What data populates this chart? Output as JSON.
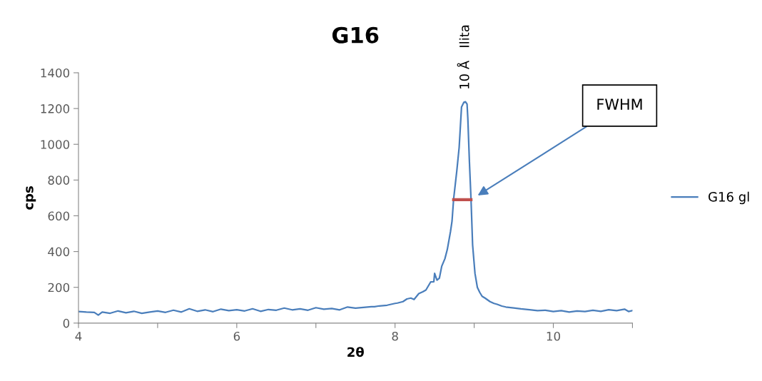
{
  "chart_data": {
    "type": "line",
    "title": "G16",
    "xlabel": "2θ",
    "ylabel": "cps",
    "xlim": [
      4,
      11
    ],
    "xticks": [
      4,
      {
        "value": 5,
        "label": null
      },
      6,
      {
        "value": 7,
        "label": null
      },
      8,
      {
        "value": 9,
        "label": null
      },
      10,
      {
        "value": 11,
        "label": null
      }
    ],
    "ylim": [
      0,
      1400
    ],
    "yticks": [
      0,
      200,
      400,
      600,
      800,
      1000,
      1200,
      1400
    ],
    "grid": false,
    "legend": "right",
    "series": [
      {
        "name": "G16 gl",
        "color": "#4a7ebb",
        "x": [
          4.0,
          4.1,
          4.2,
          4.25,
          4.3,
          4.4,
          4.5,
          4.6,
          4.7,
          4.8,
          4.9,
          5.0,
          5.1,
          5.2,
          5.3,
          5.4,
          5.5,
          5.6,
          5.7,
          5.8,
          5.9,
          6.0,
          6.1,
          6.2,
          6.3,
          6.4,
          6.5,
          6.6,
          6.7,
          6.8,
          6.9,
          7.0,
          7.1,
          7.2,
          7.3,
          7.4,
          7.5,
          7.6,
          7.7,
          7.74,
          7.8,
          7.9,
          8.0,
          8.03,
          8.1,
          8.15,
          8.2,
          8.24,
          8.3,
          8.35,
          8.39,
          8.45,
          8.49,
          8.5,
          8.53,
          8.56,
          8.59,
          8.63,
          8.66,
          8.7,
          8.72,
          8.74,
          8.78,
          8.81,
          8.84,
          8.87,
          8.89,
          8.91,
          8.92,
          8.94,
          8.96,
          8.98,
          9.01,
          9.04,
          9.07,
          9.1,
          9.14,
          9.2,
          9.25,
          9.29,
          9.35,
          9.4,
          9.5,
          9.59,
          9.7,
          9.8,
          9.9,
          10.0,
          10.1,
          10.2,
          10.3,
          10.4,
          10.5,
          10.6,
          10.7,
          10.8,
          10.9,
          10.95,
          11.0
        ],
        "values": [
          65,
          62,
          60,
          45,
          62,
          55,
          68,
          58,
          66,
          55,
          62,
          68,
          60,
          72,
          62,
          80,
          66,
          74,
          64,
          78,
          70,
          75,
          68,
          80,
          66,
          76,
          72,
          84,
          74,
          80,
          72,
          86,
          78,
          82,
          74,
          90,
          84,
          88,
          92,
          92,
          96,
          100,
          110,
          112,
          120,
          135,
          140,
          132,
          165,
          175,
          185,
          230,
          231,
          278,
          240,
          251,
          318,
          360,
          411,
          510,
          570,
          693,
          850,
          982,
          1208,
          1235,
          1238,
          1225,
          1142,
          900,
          693,
          438,
          278,
          200,
          172,
          150,
          139,
          120,
          110,
          105,
          95,
          90,
          85,
          80,
          75,
          70,
          72,
          65,
          70,
          62,
          68,
          65,
          72,
          66,
          75,
          70,
          78,
          65,
          70
        ]
      },
      {
        "type": "line",
        "color": "#c0504d",
        "x": [
          8.74,
          8.96
        ],
        "values": [
          690,
          690
        ]
      }
    ],
    "annotations": [
      {
        "text": "10 Å   Ilita",
        "x": 8.89,
        "y": 1238
      },
      "FWHM"
    ]
  }
}
